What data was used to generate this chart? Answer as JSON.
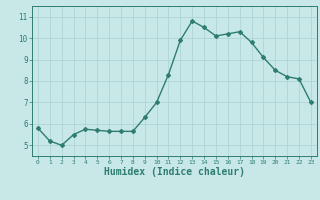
{
  "x": [
    0,
    1,
    2,
    3,
    4,
    5,
    6,
    7,
    8,
    9,
    10,
    11,
    12,
    13,
    14,
    15,
    16,
    17,
    18,
    19,
    20,
    21,
    22,
    23
  ],
  "y": [
    5.8,
    5.2,
    5.0,
    5.5,
    5.75,
    5.7,
    5.65,
    5.65,
    5.65,
    6.3,
    7.0,
    8.3,
    9.9,
    10.8,
    10.5,
    10.1,
    10.2,
    10.3,
    9.8,
    9.1,
    8.5,
    8.2,
    8.1,
    7.0
  ],
  "line_color": "#2e7d6e",
  "bg_color": "#c8e8e8",
  "grid_color": "#aed4d4",
  "xlabel": "Humidex (Indice chaleur)",
  "xlabel_fontsize": 7,
  "ylabel_ticks": [
    5,
    6,
    7,
    8,
    9,
    10,
    11
  ],
  "xlim": [
    -0.5,
    23.5
  ],
  "ylim": [
    4.5,
    11.5
  ],
  "marker": "D",
  "marker_size": 2.0,
  "line_width": 1.0
}
